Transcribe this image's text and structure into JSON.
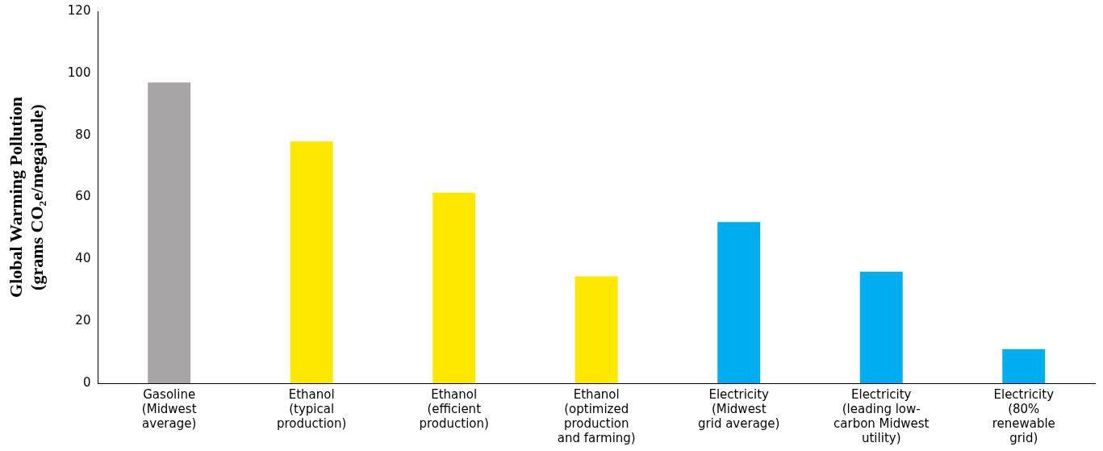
{
  "chart_data": {
    "type": "bar",
    "ylabel": "Global Warming Pollution\n(grams CO₂e/megajoule)",
    "categories": [
      "Gasoline\n(Midwest\naverage)",
      "Ethanol\n(typical\nproduction)",
      "Ethanol\n(efficient\nproduction)",
      "Ethanol\n(optimized\nproduction\nand farming)",
      "Electricity\n(Midwest\ngrid average)",
      "Electricity\n(leading low-\ncarbon Midwest\nutility)",
      "Electricity\n(80%\nrenewable\ngrid)"
    ],
    "values": [
      97,
      78,
      61.5,
      34.5,
      52,
      36,
      11
    ],
    "colors": [
      "#a7a5a6",
      "#ffe800",
      "#ffe800",
      "#ffe800",
      "#00aeef",
      "#00aeef",
      "#00aeef"
    ],
    "ylim": [
      0,
      120
    ],
    "yticks": [
      0,
      20,
      40,
      60,
      80,
      100,
      120
    ],
    "grid": false,
    "legend": false
  }
}
